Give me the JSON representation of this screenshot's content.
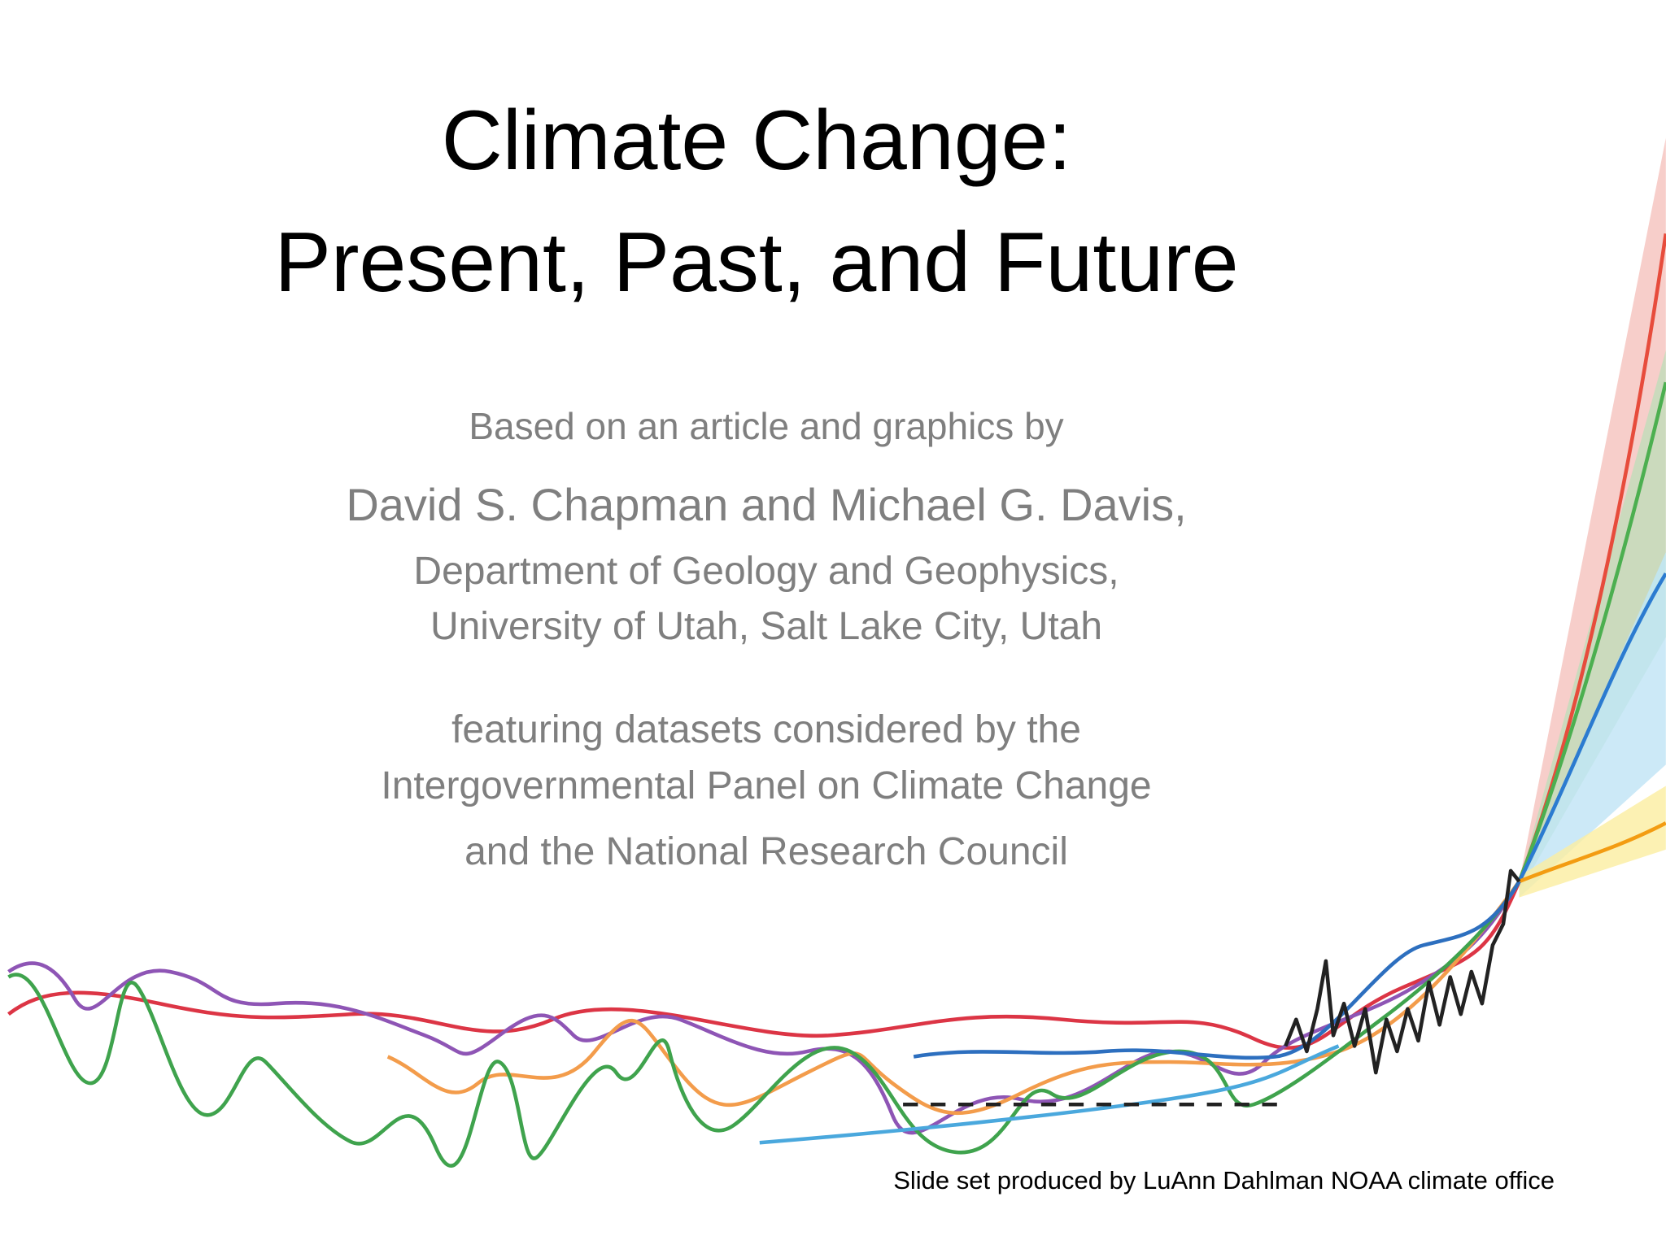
{
  "title": [
    "Climate Change:",
    "Present, Past, and Future"
  ],
  "intro": "Based on an article and graphics by",
  "authors": "David S. Chapman and Michael G. Davis,",
  "affiliation": [
    "Department of Geology and Geophysics,",
    "University of Utah, Salt Lake City, Utah"
  ],
  "featuring": [
    "featuring datasets considered by the",
    "Intergovernmental Panel on Climate Change",
    "and the National Research Council"
  ],
  "credit": "Slide set produced by LuAnn Dahlman NOAA climate office"
}
